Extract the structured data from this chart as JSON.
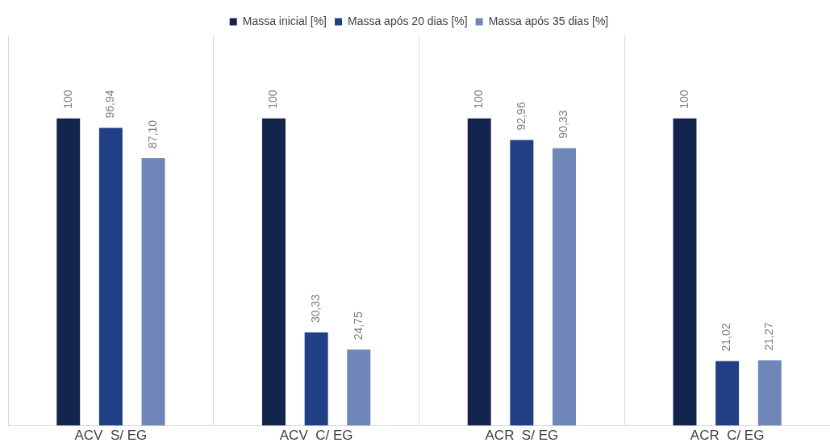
{
  "chart_data": {
    "type": "bar",
    "categories": [
      "ACV  S/ EG",
      "ACV  C/ EG",
      "ACR  S/ EG",
      "ACR  C/ EG"
    ],
    "series": [
      {
        "name": "Massa inicial [%]",
        "color": "#14254d",
        "values": [
          100,
          100,
          100,
          100
        ],
        "value_labels": [
          "100",
          "100",
          "100",
          "100"
        ]
      },
      {
        "name": "Massa após 20 dias [%]",
        "color": "#213f85",
        "values": [
          96.94,
          30.33,
          92.96,
          21.02
        ],
        "value_labels": [
          "96,94",
          "30,33",
          "92,96",
          "21,02"
        ]
      },
      {
        "name": "Massa após 35 dias [%]",
        "color": "#6f86b8",
        "values": [
          87.1,
          24.75,
          90.33,
          21.27
        ],
        "value_labels": [
          "87,10",
          "24,75",
          "90,33",
          "21,27"
        ]
      }
    ],
    "legend": "top",
    "grid": "x",
    "tick_labels": "x"
  }
}
